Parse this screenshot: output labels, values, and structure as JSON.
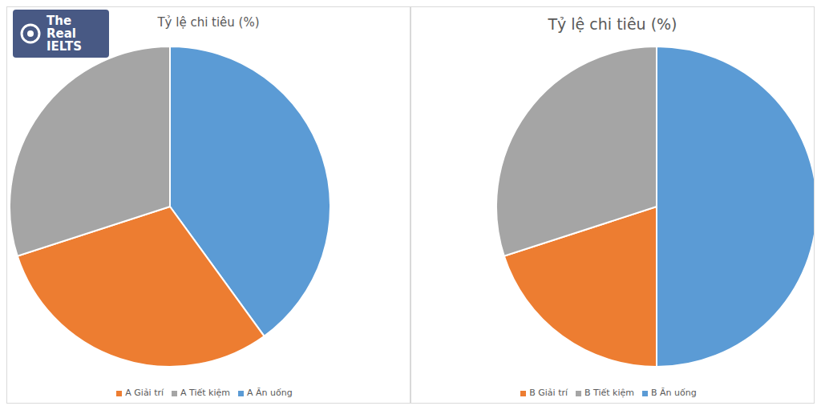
{
  "watermark": "The Real IELTS",
  "chart_data": [
    {
      "type": "pie",
      "title": "Tỷ lệ chi tiêu (%)",
      "categories": [
        "A Ăn uống",
        "A Giải trí",
        "A Tiết kiệm"
      ],
      "values": [
        40,
        30,
        30
      ],
      "colors": [
        "#5b9bd5",
        "#ed7d31",
        "#a5a5a5"
      ],
      "legend": "bottom"
    },
    {
      "type": "pie",
      "title": "Tỷ lệ chi tiêu (%)",
      "categories": [
        "B Ăn uống",
        "B Giải trí",
        "B Tiết kiệm"
      ],
      "values": [
        50,
        20,
        30
      ],
      "colors": [
        "#5b9bd5",
        "#ed7d31",
        "#a5a5a5"
      ],
      "legend": "bottom"
    }
  ]
}
